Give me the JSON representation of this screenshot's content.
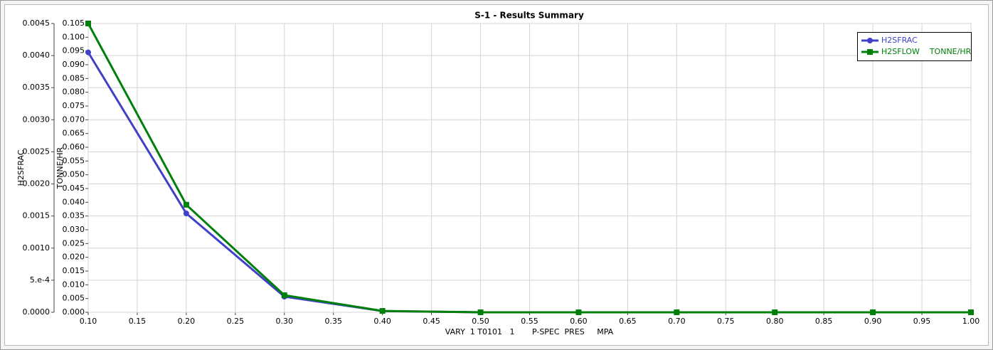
{
  "chart_data": {
    "type": "line",
    "title": "S-1 - Results Summary",
    "x_label": "VARY  1 T0101   1       P-SPEC  PRES     MPA",
    "y_label": "H2SFRAC",
    "y2_label": "TONNE/HR",
    "x": [
      0.1,
      0.2,
      0.3,
      0.4,
      0.5,
      0.6,
      0.7,
      0.8,
      0.9,
      1.0
    ],
    "series": [
      {
        "name": "H2SFRAC",
        "color": "#4040c8",
        "marker": "circle",
        "values": [
          0.00405,
          0.00154,
          0.000244,
          2e-05,
          0,
          0,
          0,
          0,
          0,
          0
        ]
      },
      {
        "name": "H2SFLOW    TONNE/HR",
        "color": "#00800a",
        "marker": "square",
        "axis": "y2",
        "values": [
          0.105,
          0.0391,
          0.0062,
          0.0005,
          0,
          0,
          0,
          0,
          0,
          0
        ]
      }
    ],
    "xlim": [
      0.1,
      1.0
    ],
    "xticks": [
      {
        "value": 0.1,
        "label": "0.10"
      },
      0.15,
      {
        "value": 0.2,
        "label": "0.20"
      },
      0.25,
      {
        "value": 0.3,
        "label": "0.30"
      },
      0.35,
      {
        "value": 0.4,
        "label": "0.40"
      },
      0.45,
      {
        "value": 0.5,
        "label": "0.50"
      },
      0.55,
      {
        "value": 0.6,
        "label": "0.60"
      },
      0.65,
      {
        "value": 0.7,
        "label": "0.70"
      },
      0.75,
      {
        "value": 0.8,
        "label": "0.80"
      },
      0.85,
      {
        "value": 0.9,
        "label": "0.90"
      },
      0.95,
      {
        "value": 1.0,
        "label": "1.00"
      }
    ],
    "ylim": [
      0,
      0.0045
    ],
    "yticks": [
      {
        "value": 0,
        "label": "0.0000"
      },
      {
        "value": 0.0005,
        "label": "5.e-4"
      },
      {
        "value": 0.001,
        "label": "0.0010"
      },
      0.0015,
      {
        "value": 0.002,
        "label": "0.0020"
      },
      0.0025,
      {
        "value": 0.003,
        "label": "0.0030"
      },
      0.0035,
      {
        "value": 0.004,
        "label": "0.0040"
      },
      0.0045
    ],
    "y2lim": [
      0,
      0.105
    ],
    "y2ticks": [
      {
        "value": 0,
        "label": "0.000"
      },
      0.005,
      {
        "value": 0.01,
        "label": "0.010"
      },
      0.015,
      {
        "value": 0.02,
        "label": "0.020"
      },
      0.025,
      {
        "value": 0.03,
        "label": "0.030"
      },
      0.035,
      {
        "value": 0.04,
        "label": "0.040"
      },
      0.045,
      {
        "value": 0.05,
        "label": "0.050"
      },
      0.055,
      {
        "value": 0.06,
        "label": "0.060"
      },
      0.065,
      {
        "value": 0.07,
        "label": "0.070"
      },
      0.075,
      {
        "value": 0.08,
        "label": "0.080"
      },
      0.085,
      {
        "value": 0.09,
        "label": "0.090"
      },
      0.095,
      {
        "value": 0.1,
        "label": "0.100"
      },
      0.105
    ],
    "grid": true,
    "legend": "upper right"
  }
}
